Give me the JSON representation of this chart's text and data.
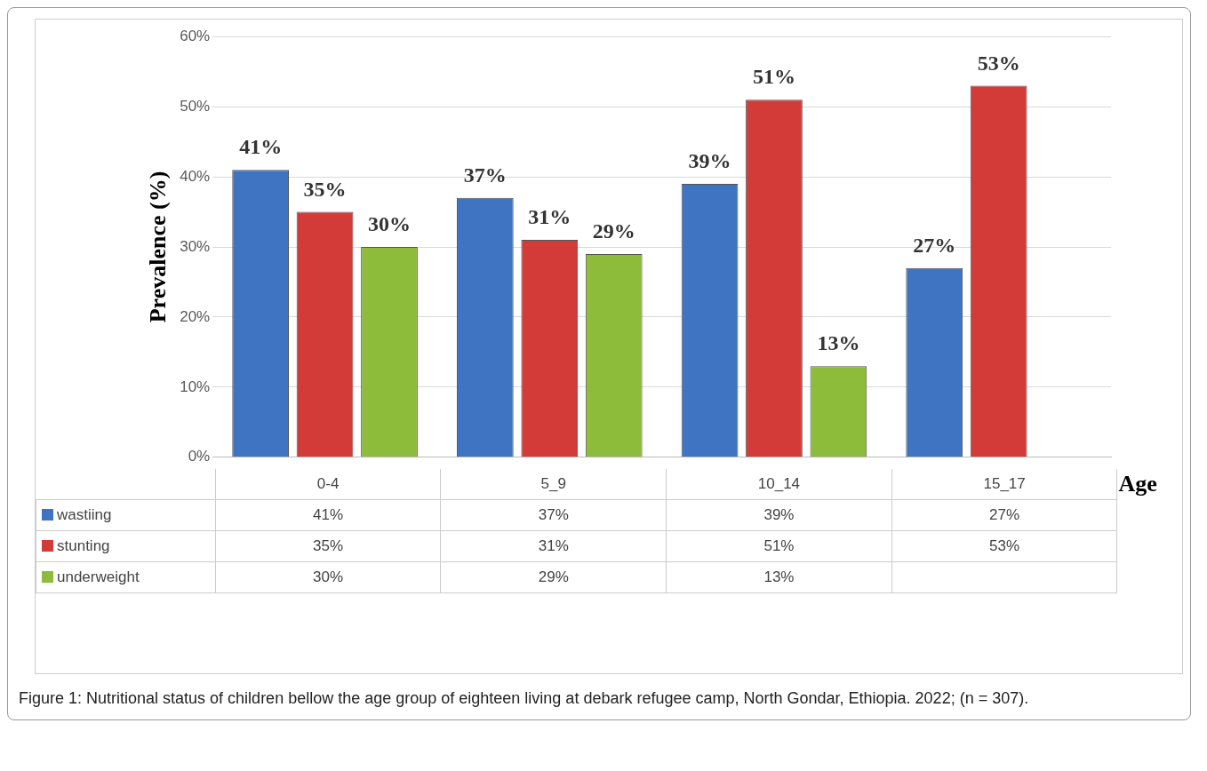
{
  "chart_data": {
    "type": "bar",
    "categories": [
      "0-4",
      "5_9",
      "10_14",
      "15_17"
    ],
    "series": [
      {
        "name": "wastiing",
        "color": "#3f74c2",
        "values": [
          41,
          37,
          39,
          27
        ],
        "value_labels": [
          "41%",
          "37%",
          "39%",
          "27%"
        ]
      },
      {
        "name": "stunting",
        "color": "#d23b38",
        "values": [
          35,
          31,
          51,
          53
        ],
        "value_labels": [
          "35%",
          "31%",
          "51%",
          "53%"
        ]
      },
      {
        "name": "underweight",
        "color": "#8dbb3a",
        "values": [
          30,
          29,
          13,
          null
        ],
        "value_labels": [
          "30%",
          "29%",
          "13%",
          null
        ]
      }
    ],
    "ylabel": "Prevalence (%)",
    "xlabel": "Age",
    "ylim": [
      0,
      60
    ],
    "yticks": [
      {
        "value": 0,
        "label": "0%"
      },
      {
        "value": 10,
        "label": "10%"
      },
      {
        "value": 20,
        "label": "20%"
      },
      {
        "value": 30,
        "label": "30%"
      },
      {
        "value": 40,
        "label": "40%"
      },
      {
        "value": 50,
        "label": "50%"
      },
      {
        "value": 60,
        "label": "60%"
      }
    ],
    "grid": "y",
    "legend": "bottom",
    "annotations": [
      "Figure 1: Nutritional status of children bellow the age group of eighteen living at debark refugee camp, North Gondar, Ethiopia. 2022; (n = 307)."
    ]
  }
}
